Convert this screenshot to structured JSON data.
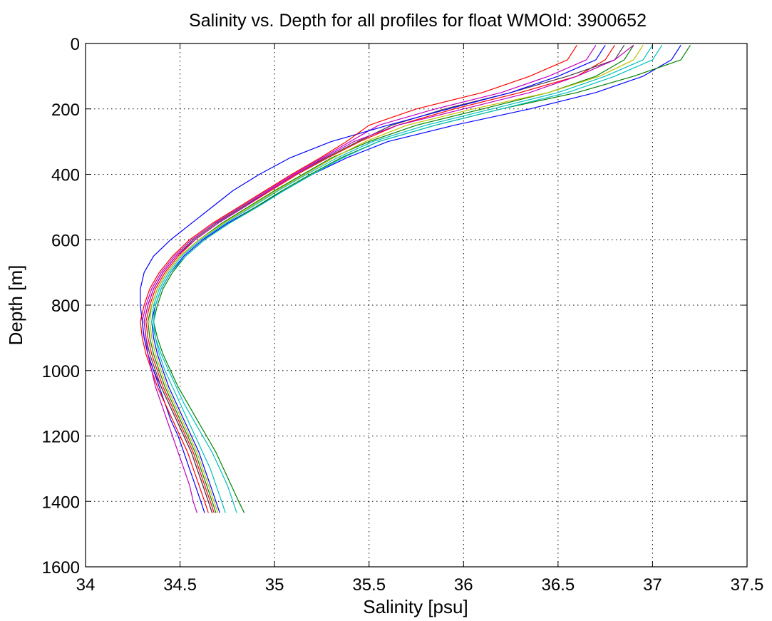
{
  "chart_data": {
    "type": "line",
    "title": "Salinity vs. Depth for all profiles for float WMOId: 3900652",
    "xlabel": "Salinity [psu]",
    "ylabel": "Depth [m]",
    "xlim": [
      34,
      37.5
    ],
    "ylim": [
      0,
      1600
    ],
    "y_reversed": true,
    "grid": true,
    "grid_style": "dotted",
    "xticks": [
      "34",
      "34.5",
      "35",
      "35.5",
      "36",
      "36.5",
      "37",
      "37.5"
    ],
    "yticks": [
      "0",
      "200",
      "400",
      "600",
      "800",
      "1000",
      "1200",
      "1400",
      "1600"
    ],
    "xtick_values": [
      34,
      34.5,
      35,
      35.5,
      36,
      36.5,
      37,
      37.5
    ],
    "ytick_values": [
      0,
      200,
      400,
      600,
      800,
      1000,
      1200,
      1400,
      1600
    ],
    "colors": [
      "#0000ff",
      "#008000",
      "#ff0000",
      "#00bfbf",
      "#bf00bf",
      "#bfbf00",
      "#404040"
    ],
    "depths": [
      5,
      50,
      100,
      150,
      200,
      250,
      300,
      350,
      400,
      450,
      500,
      550,
      600,
      650,
      700,
      750,
      800,
      850,
      900,
      950,
      1000,
      1050,
      1100,
      1150,
      1200,
      1250,
      1300,
      1350,
      1400,
      1435
    ],
    "series": [
      {
        "values": [
          37.15,
          37.1,
          36.95,
          36.7,
          36.35,
          35.95,
          35.6,
          35.38,
          35.2,
          35.05,
          34.9,
          34.75,
          34.62,
          34.52,
          34.45,
          34.4,
          34.37,
          34.35,
          34.36,
          34.38,
          34.41,
          34.44,
          34.48,
          34.52,
          34.56,
          34.6,
          34.63,
          34.66,
          34.69,
          34.71
        ]
      },
      {
        "values": [
          36.9,
          36.85,
          36.7,
          36.45,
          36.1,
          35.75,
          35.5,
          35.3,
          35.15,
          35.0,
          34.86,
          34.72,
          34.6,
          34.5,
          34.43,
          34.38,
          34.35,
          34.33,
          34.34,
          34.36,
          34.39,
          34.42,
          34.46,
          34.5,
          34.54,
          34.58,
          34.61,
          34.64,
          34.67,
          34.69
        ]
      },
      {
        "values": [
          36.8,
          36.75,
          36.6,
          36.3,
          35.95,
          35.65,
          35.45,
          35.28,
          35.12,
          34.98,
          34.84,
          34.7,
          34.58,
          34.49,
          34.42,
          34.37,
          34.34,
          34.32,
          34.33,
          34.35,
          34.38,
          34.41,
          34.45,
          34.49,
          34.53,
          34.57,
          34.6,
          34.63,
          34.66,
          34.68
        ]
      },
      {
        "values": [
          37.0,
          36.95,
          36.75,
          36.5,
          36.15,
          35.8,
          35.52,
          35.33,
          35.17,
          35.02,
          34.88,
          34.74,
          34.61,
          34.51,
          34.44,
          34.39,
          34.36,
          34.35,
          34.37,
          34.4,
          34.44,
          34.48,
          34.52,
          34.57,
          34.62,
          34.67,
          34.71,
          34.75,
          34.78,
          34.8
        ]
      },
      {
        "values": [
          36.7,
          36.65,
          36.45,
          36.2,
          35.85,
          35.55,
          35.4,
          35.25,
          35.1,
          34.96,
          34.82,
          34.68,
          34.56,
          34.47,
          34.4,
          34.35,
          34.32,
          34.3,
          34.31,
          34.33,
          34.36,
          34.4,
          34.44,
          34.48,
          34.52,
          34.56,
          34.59,
          34.62,
          34.65,
          34.67
        ]
      },
      {
        "values": [
          36.95,
          36.9,
          36.72,
          36.45,
          36.05,
          35.7,
          35.48,
          35.31,
          35.16,
          35.01,
          34.87,
          34.73,
          34.6,
          34.5,
          34.43,
          34.38,
          34.35,
          34.34,
          34.35,
          34.37,
          34.4,
          34.43,
          34.47,
          34.51,
          34.55,
          34.59,
          34.62,
          34.65,
          34.68,
          34.7
        ]
      },
      {
        "values": [
          36.85,
          36.8,
          36.55,
          36.25,
          35.9,
          35.62,
          35.44,
          35.27,
          35.11,
          34.97,
          34.83,
          34.69,
          34.57,
          34.48,
          34.41,
          34.36,
          34.33,
          34.31,
          34.32,
          34.34,
          34.37,
          34.4,
          34.44,
          34.48,
          34.52,
          34.56,
          34.59,
          34.62,
          34.65,
          34.67
        ]
      },
      {
        "values": [
          36.75,
          36.7,
          36.5,
          36.25,
          35.92,
          35.6,
          35.3,
          35.08,
          34.92,
          34.78,
          34.67,
          34.56,
          34.45,
          34.36,
          34.31,
          34.29,
          34.29,
          34.3,
          34.31,
          34.33,
          34.36,
          34.39,
          34.42,
          34.45,
          34.49,
          34.52,
          34.55,
          34.58,
          34.61,
          34.63
        ]
      },
      {
        "values": [
          37.2,
          37.15,
          36.9,
          36.6,
          36.2,
          35.85,
          35.55,
          35.35,
          35.19,
          35.04,
          34.9,
          34.76,
          34.63,
          34.53,
          34.46,
          34.41,
          34.38,
          34.36,
          34.38,
          34.41,
          34.45,
          34.49,
          34.54,
          34.59,
          34.64,
          34.69,
          34.73,
          34.77,
          34.81,
          34.84
        ]
      },
      {
        "values": [
          36.6,
          36.55,
          36.35,
          36.1,
          35.75,
          35.5,
          35.38,
          35.24,
          35.09,
          34.95,
          34.81,
          34.67,
          34.55,
          34.46,
          34.39,
          34.34,
          34.31,
          34.29,
          34.3,
          34.32,
          34.35,
          34.38,
          34.42,
          34.46,
          34.5,
          34.54,
          34.57,
          34.6,
          34.63,
          34.65
        ]
      },
      {
        "values": [
          37.05,
          37.0,
          36.8,
          36.55,
          36.2,
          35.85,
          35.55,
          35.36,
          35.2,
          35.05,
          34.91,
          34.76,
          34.63,
          34.53,
          34.45,
          34.4,
          34.37,
          34.36,
          34.37,
          34.39,
          34.42,
          34.46,
          34.5,
          34.54,
          34.58,
          34.62,
          34.66,
          34.69,
          34.72,
          34.74
        ]
      },
      {
        "values": [
          36.9,
          36.8,
          36.6,
          36.35,
          36.0,
          35.65,
          35.42,
          35.26,
          35.11,
          34.97,
          34.84,
          34.7,
          34.58,
          34.48,
          34.41,
          34.36,
          34.33,
          34.31,
          34.32,
          34.33,
          34.35,
          34.37,
          34.4,
          34.43,
          34.46,
          34.49,
          34.52,
          34.55,
          34.57,
          34.59
        ]
      }
    ]
  }
}
